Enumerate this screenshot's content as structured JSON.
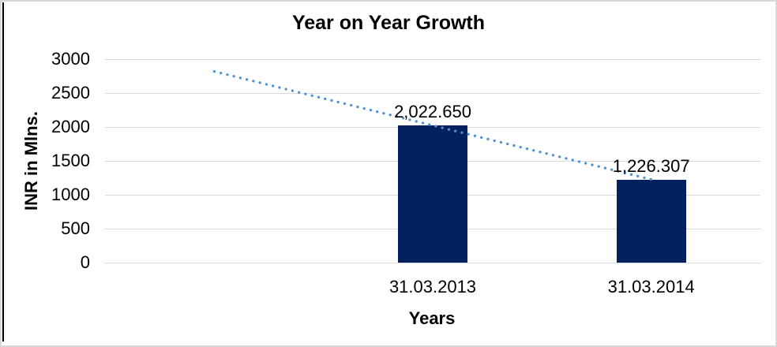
{
  "frame": {
    "border_color": "#D8D8D8",
    "left_edge_color": "#000000",
    "background": "#FFFFFF"
  },
  "chart_data": {
    "type": "bar",
    "title": "Year on Year Growth",
    "xlabel": "Years",
    "ylabel": "INR in Mlns.",
    "categories": [
      "",
      "31.03.2013",
      "31.03.2014"
    ],
    "values": [
      null,
      2022.65,
      1226.307
    ],
    "data_labels": [
      "",
      "2,022.650",
      "1,226.307"
    ],
    "ylim": [
      0,
      3000
    ],
    "ytick_step": 500,
    "yticks": [
      "0",
      "500",
      "1000",
      "1500",
      "2000",
      "2500",
      "3000"
    ],
    "grid": true,
    "legend": "none",
    "bar_color": "#02215E",
    "gridline_color": "#D9D9D9",
    "text_color": "#000000",
    "trendline": {
      "type": "linear",
      "style": "dotted",
      "color": "#4E91D5",
      "points": [
        {
          "category_slot": 1,
          "value": 2818.993
        },
        {
          "category_slot": 3,
          "value": 1226.307
        }
      ]
    }
  }
}
